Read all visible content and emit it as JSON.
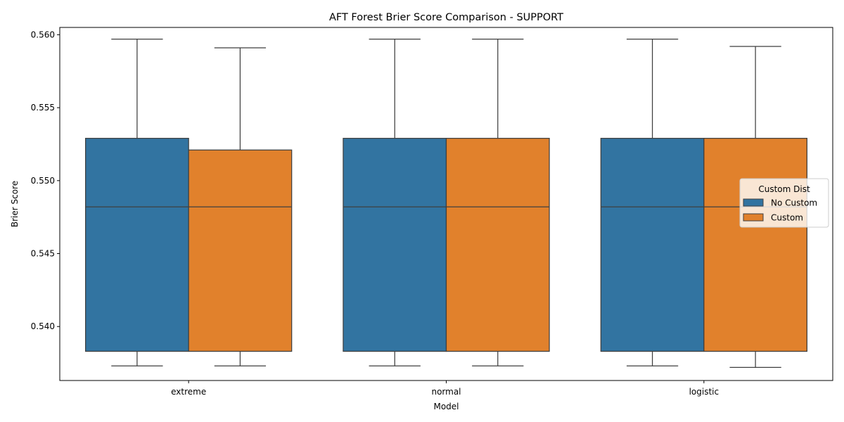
{
  "chart_data": {
    "type": "box",
    "title": "AFT Forest Brier Score Comparison - SUPPORT",
    "xlabel": "Model",
    "ylabel": "Brier Score",
    "categories": [
      "extreme",
      "normal",
      "logistic"
    ],
    "ylim": [
      0.5363,
      0.5605
    ],
    "yticks": [
      "0.540",
      "0.545",
      "0.550",
      "0.555",
      "0.560"
    ],
    "ytick_values": [
      0.54,
      0.545,
      0.55,
      0.555,
      0.56
    ],
    "legend": {
      "title": "Custom Dist",
      "position": "center-right"
    },
    "series": [
      {
        "name": "No Custom",
        "color": "#3274a1",
        "boxes": [
          {
            "whislo": 0.5373,
            "q1": 0.5383,
            "median": 0.5482,
            "q3": 0.5529,
            "whishi": 0.5597
          },
          {
            "whislo": 0.5373,
            "q1": 0.5383,
            "median": 0.5482,
            "q3": 0.5529,
            "whishi": 0.5597
          },
          {
            "whislo": 0.5373,
            "q1": 0.5383,
            "median": 0.5482,
            "q3": 0.5529,
            "whishi": 0.5597
          }
        ]
      },
      {
        "name": "Custom",
        "color": "#e1812c",
        "boxes": [
          {
            "whislo": 0.5373,
            "q1": 0.5383,
            "median": 0.5482,
            "q3": 0.5521,
            "whishi": 0.5591
          },
          {
            "whislo": 0.5373,
            "q1": 0.5383,
            "median": 0.5482,
            "q3": 0.5529,
            "whishi": 0.5597
          },
          {
            "whislo": 0.5372,
            "q1": 0.5383,
            "median": 0.5482,
            "q3": 0.5529,
            "whishi": 0.5592
          }
        ]
      }
    ]
  }
}
